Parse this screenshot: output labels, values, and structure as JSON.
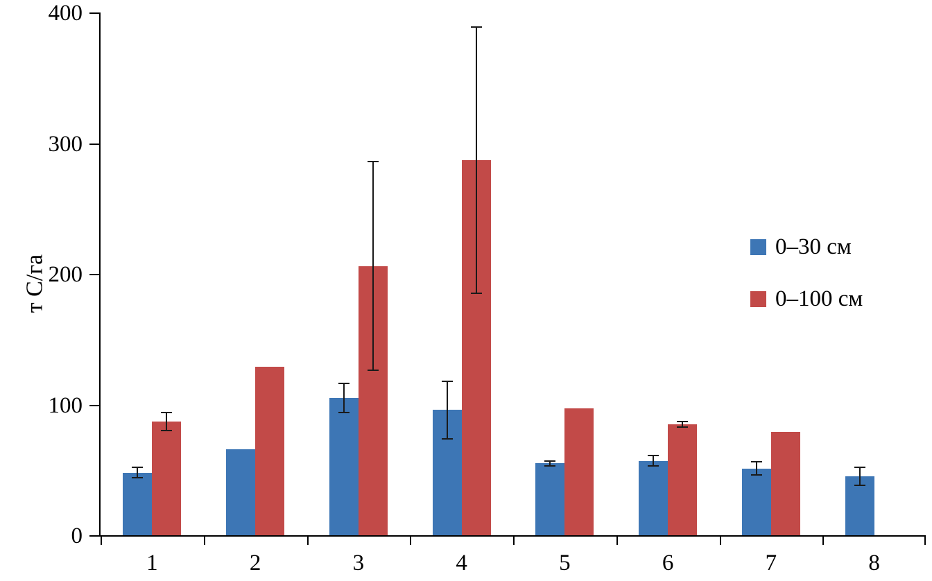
{
  "chart_data": {
    "type": "bar",
    "title": "",
    "ylabel": "т С/га",
    "xlabel": "",
    "ylim": [
      0,
      400
    ],
    "yticks": [
      0,
      100,
      200,
      300,
      400
    ],
    "grid": false,
    "legend_position": "right",
    "categories": [
      "1",
      "2",
      "3",
      "4",
      "5",
      "6",
      "7",
      "8"
    ],
    "series": [
      {
        "name": "0–30 см",
        "color": "#3d76b5",
        "values": [
          48,
          66,
          105,
          96,
          55,
          57,
          51,
          45
        ],
        "errors": [
          4,
          0,
          11,
          22,
          2,
          4,
          5,
          7
        ]
      },
      {
        "name": "0–100 см",
        "color": "#c24a48",
        "values": [
          87,
          129,
          206,
          287,
          97,
          85,
          79,
          null
        ],
        "errors": [
          7,
          0,
          80,
          102,
          0,
          2,
          0,
          null
        ]
      }
    ]
  }
}
